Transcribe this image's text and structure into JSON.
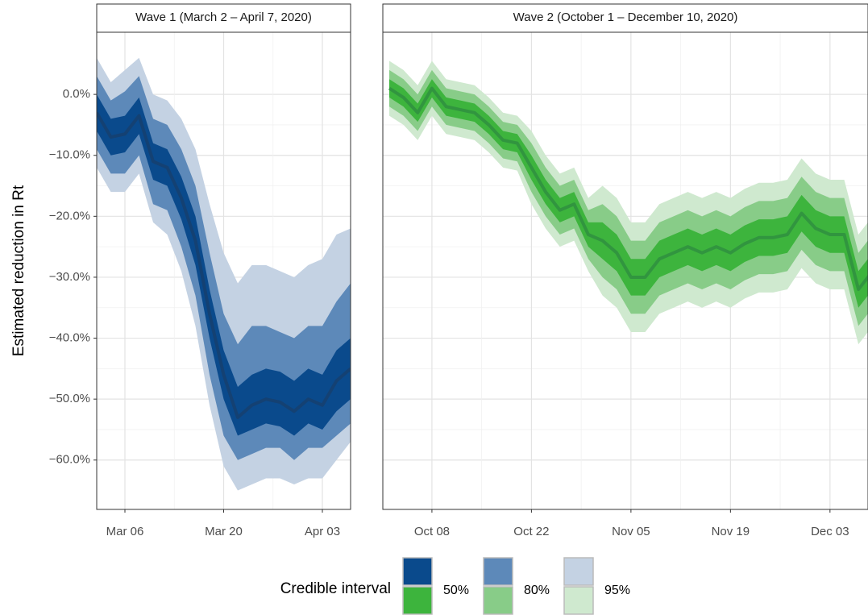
{
  "chart_data": [
    {
      "type": "ribbon",
      "title": "Wave 1 (March 2 – April 7, 2020)",
      "ylabel": "Estimated reduction in Rt",
      "x": [
        "Mar 02",
        "Mar 04",
        "Mar 06",
        "Mar 08",
        "Mar 10",
        "Mar 12",
        "Mar 14",
        "Mar 16",
        "Mar 18",
        "Mar 20",
        "Mar 22",
        "Mar 24",
        "Mar 26",
        "Mar 28",
        "Mar 30",
        "Apr 01",
        "Apr 03",
        "Apr 05",
        "Apr 07"
      ],
      "xticks": [
        "Mar 06",
        "Mar 20",
        "Apr 03"
      ],
      "ylim": [
        -68.1,
        10.2
      ],
      "yticks": [
        {
          "value": -60,
          "label": "−60.0%"
        },
        {
          "value": -50,
          "label": "−50.0%"
        },
        {
          "value": -40,
          "label": "−40.0%"
        },
        {
          "value": -30,
          "label": "−30.0%"
        },
        {
          "value": -20,
          "label": "−20.0%"
        },
        {
          "value": -10,
          "label": "−10.0%"
        },
        {
          "value": 0,
          "label": "0.0%"
        }
      ],
      "grid": true,
      "median": {
        "color": "#163f6e",
        "values": [
          -3,
          -7,
          -6.5,
          -3.5,
          -11,
          -12,
          -17,
          -24,
          -36,
          -46,
          -53,
          -51,
          -50,
          -50.5,
          -52,
          -50,
          -51,
          -47,
          -45
        ]
      },
      "intervals": [
        {
          "name": "50%",
          "color": "#0a4a8c",
          "upper": [
            0,
            -4,
            -3.5,
            -0.5,
            -8,
            -9,
            -13.5,
            -20,
            -32,
            -42,
            -48,
            -46,
            -45,
            -45.5,
            -47,
            -45,
            -46,
            -42,
            -40
          ],
          "lower": [
            -6,
            -10,
            -9.5,
            -6.5,
            -14,
            -15,
            -20.5,
            -28,
            -40,
            -50,
            -56,
            -55,
            -54,
            -54.5,
            -56,
            -54,
            -55,
            -52,
            -50
          ]
        },
        {
          "name": "80%",
          "color": "#5d89b9",
          "upper": [
            3,
            -1,
            0.5,
            3,
            -4,
            -5,
            -9,
            -15,
            -26,
            -36,
            -41,
            -38,
            -38,
            -39,
            -40,
            -38,
            -38,
            -34,
            -31
          ],
          "lower": [
            -9,
            -13,
            -13,
            -10,
            -18,
            -19,
            -25,
            -33,
            -46,
            -56,
            -60,
            -59,
            -58,
            -58,
            -60,
            -58,
            -58,
            -56,
            -54
          ]
        },
        {
          "name": "95%",
          "color": "#c4d2e3",
          "upper": [
            6,
            2,
            4,
            6,
            0,
            -1,
            -4,
            -9,
            -18,
            -26,
            -31,
            -28,
            -28,
            -29,
            -30,
            -28,
            -27,
            -23,
            -22
          ],
          "lower": [
            -12,
            -16,
            -16,
            -13,
            -21,
            -23,
            -29,
            -38,
            -51,
            -61,
            -65,
            -64,
            -63,
            -63,
            -64,
            -63,
            -63,
            -60,
            -57
          ]
        }
      ]
    },
    {
      "type": "ribbon",
      "title": "Wave 2 (October 1 – December 10, 2020)",
      "x": [
        "Oct 02",
        "Oct 04",
        "Oct 06",
        "Oct 08",
        "Oct 10",
        "Oct 12",
        "Oct 14",
        "Oct 16",
        "Oct 18",
        "Oct 20",
        "Oct 22",
        "Oct 24",
        "Oct 26",
        "Oct 28",
        "Oct 30",
        "Nov 01",
        "Nov 03",
        "Nov 05",
        "Nov 07",
        "Nov 09",
        "Nov 11",
        "Nov 13",
        "Nov 15",
        "Nov 17",
        "Nov 19",
        "Nov 21",
        "Nov 23",
        "Nov 25",
        "Nov 27",
        "Nov 29",
        "Dec 01",
        "Dec 03",
        "Dec 05",
        "Dec 07",
        "Dec 09"
      ],
      "xticks": [
        "Oct 08",
        "Oct 22",
        "Nov 05",
        "Nov 19",
        "Dec 03"
      ],
      "median": {
        "color": "#2f8f3f",
        "values": [
          1,
          -0.5,
          -3,
          1,
          -2,
          -2.5,
          -3,
          -5,
          -7.5,
          -8,
          -12,
          -16,
          -19,
          -18,
          -23,
          -24,
          -26,
          -30,
          -30,
          -27,
          -26,
          -25,
          -26,
          -25,
          -26,
          -24.5,
          -23.5,
          -23.5,
          -23,
          -19.5,
          -22,
          -23,
          -23,
          -32,
          -29
        ]
      },
      "intervals": [
        {
          "name": "50%",
          "color": "#3db43d",
          "upper": [
            2.5,
            1,
            -1.5,
            2.5,
            -0.5,
            -1,
            -1.5,
            -3.5,
            -6,
            -6.5,
            -10,
            -14,
            -17,
            -16,
            -21,
            -21,
            -23,
            -27,
            -27,
            -24,
            -23,
            -22,
            -23,
            -22,
            -23,
            -21.5,
            -20.5,
            -20.5,
            -20,
            -16.5,
            -19,
            -20,
            -20,
            -29,
            -26
          ],
          "lower": [
            -0.5,
            -2,
            -4.5,
            -0.5,
            -3.5,
            -4,
            -4.5,
            -6.5,
            -9,
            -9.5,
            -14,
            -18,
            -21,
            -20,
            -25,
            -27,
            -29,
            -33,
            -33,
            -30,
            -29,
            -28,
            -29,
            -28,
            -29,
            -27.5,
            -26.5,
            -26.5,
            -26,
            -22.5,
            -25,
            -26,
            -26,
            -35,
            -32
          ]
        },
        {
          "name": "80%",
          "color": "#88cc88",
          "upper": [
            4,
            2.5,
            0,
            4,
            1,
            0.5,
            0,
            -2,
            -4.5,
            -5,
            -8,
            -12,
            -15,
            -14,
            -19,
            -18,
            -20,
            -24,
            -24,
            -21,
            -20,
            -19,
            -20,
            -19,
            -20,
            -18.5,
            -17.5,
            -17.5,
            -17,
            -13.5,
            -16,
            -17,
            -17,
            -26,
            -23
          ],
          "lower": [
            -2,
            -3.5,
            -6,
            -2,
            -5,
            -5.5,
            -6,
            -8,
            -10.5,
            -11,
            -16,
            -20,
            -23,
            -22,
            -27,
            -30,
            -32,
            -36,
            -36,
            -33,
            -32,
            -31,
            -32,
            -31,
            -32,
            -30.5,
            -29.5,
            -29.5,
            -29,
            -25.5,
            -28,
            -29,
            -29,
            -38,
            -35
          ]
        },
        {
          "name": "95%",
          "color": "#cfe9cf",
          "upper": [
            5.5,
            4,
            1.5,
            5.5,
            2.5,
            2,
            1.5,
            -0.5,
            -3,
            -3.5,
            -6,
            -10,
            -13,
            -12,
            -17,
            -15,
            -17,
            -21,
            -21,
            -18,
            -17,
            -16,
            -17,
            -16,
            -17,
            -15.5,
            -14.5,
            -14.5,
            -14,
            -10.5,
            -13,
            -14,
            -14,
            -23,
            -20
          ],
          "lower": [
            -3.5,
            -5,
            -7.5,
            -3.5,
            -6.5,
            -7,
            -7.5,
            -9.5,
            -12,
            -12.5,
            -18,
            -22,
            -25,
            -24,
            -29,
            -33,
            -35,
            -39,
            -39,
            -36,
            -35,
            -34,
            -35,
            -34,
            -35,
            -33.5,
            -32.5,
            -32.5,
            -32,
            -28.5,
            -31,
            -32,
            -32,
            -41,
            -38
          ]
        }
      ]
    }
  ],
  "legend": {
    "title": "Credible interval"
  }
}
